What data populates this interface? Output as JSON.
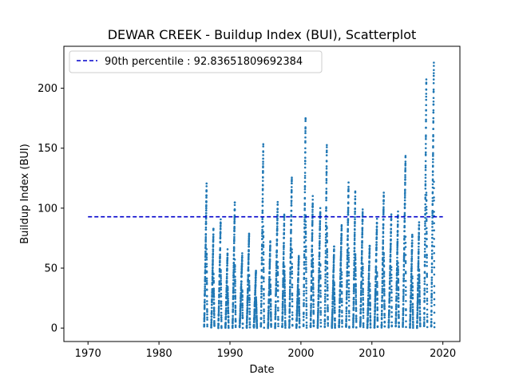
{
  "chart_data": {
    "type": "scatter",
    "title": "DEWAR CREEK - Buildup Index (BUI), Scatterplot",
    "xlabel": "Date",
    "ylabel": "Buildup Index (BUI)",
    "xlim": [
      1966.6,
      2022.4
    ],
    "ylim": [
      -11.2,
      235.0
    ],
    "x_ticks": [
      1970,
      1980,
      1990,
      2000,
      2010,
      2020
    ],
    "y_ticks": [
      0,
      50,
      100,
      150,
      200
    ],
    "legend": {
      "placement": "top-left",
      "label": "90th percentile : 92.83651809692384"
    },
    "percentile_line": {
      "label": "90th percentile",
      "value": 92.83651809692384,
      "x_range": [
        1970,
        2020
      ],
      "color": "#0000cc",
      "style": "dashed"
    },
    "point_color": "#1f77b4",
    "series": [
      {
        "name": "BUI",
        "season_peaks": [
          {
            "year": 1986,
            "peak": 120
          },
          {
            "year": 1987,
            "peak": 83
          },
          {
            "year": 1988,
            "peak": 91
          },
          {
            "year": 1989,
            "peak": 65
          },
          {
            "year": 1990,
            "peak": 105
          },
          {
            "year": 1991,
            "peak": 62
          },
          {
            "year": 1992,
            "peak": 80
          },
          {
            "year": 1993,
            "peak": 48
          },
          {
            "year": 1994,
            "peak": 153
          },
          {
            "year": 1995,
            "peak": 72
          },
          {
            "year": 1996,
            "peak": 105
          },
          {
            "year": 1997,
            "peak": 95
          },
          {
            "year": 1998,
            "peak": 127
          },
          {
            "year": 1999,
            "peak": 60
          },
          {
            "year": 2000,
            "peak": 177
          },
          {
            "year": 2001,
            "peak": 110
          },
          {
            "year": 2002,
            "peak": 100
          },
          {
            "year": 2003,
            "peak": 155
          },
          {
            "year": 2004,
            "peak": 68
          },
          {
            "year": 2005,
            "peak": 85
          },
          {
            "year": 2006,
            "peak": 121
          },
          {
            "year": 2007,
            "peak": 115
          },
          {
            "year": 2008,
            "peak": 98
          },
          {
            "year": 2009,
            "peak": 70
          },
          {
            "year": 2010,
            "peak": 90
          },
          {
            "year": 2011,
            "peak": 114
          },
          {
            "year": 2012,
            "peak": 95
          },
          {
            "year": 2013,
            "peak": 97
          },
          {
            "year": 2014,
            "peak": 144
          },
          {
            "year": 2015,
            "peak": 78
          },
          {
            "year": 2016,
            "peak": 89
          },
          {
            "year": 2017,
            "peak": 210
          },
          {
            "year": 2018,
            "peak": 224
          }
        ]
      }
    ]
  }
}
